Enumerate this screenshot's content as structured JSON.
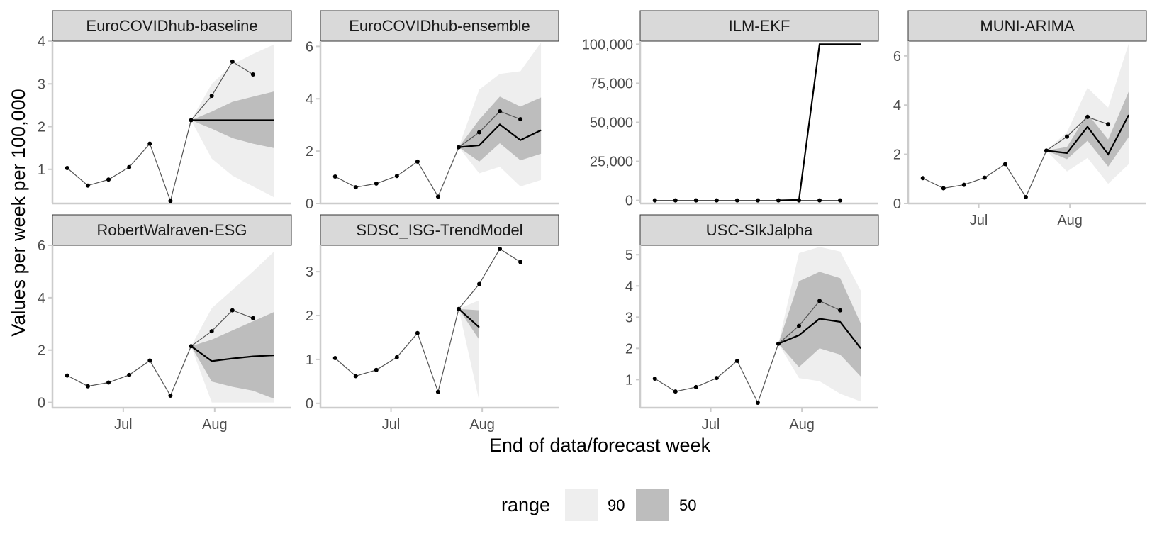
{
  "chart_data": {
    "type": "line",
    "xlabel": "End of data/forecast week",
    "ylabel": "Values per week per 100,000",
    "x_ticks": [
      "Jul",
      "Aug"
    ],
    "observed_dates": [
      "2021-06-12",
      "2021-06-19",
      "2021-06-26",
      "2021-07-03",
      "2021-07-10",
      "2021-07-17",
      "2021-07-24",
      "2021-07-31",
      "2021-08-07",
      "2021-08-14"
    ],
    "observed_values": [
      1.03,
      0.62,
      0.76,
      1.05,
      1.6,
      0.26,
      2.15,
      2.72,
      3.52,
      3.22
    ],
    "legend": {
      "title": "range",
      "items": [
        {
          "label": "90",
          "color": "#eeeeee"
        },
        {
          "label": "50",
          "color": "#bdbdbd"
        }
      ]
    },
    "panels": [
      {
        "name": "EuroCOVIDhub-baseline",
        "yticks": [
          1,
          2,
          3,
          4
        ],
        "ylim": [
          0.2,
          4.0
        ],
        "forecast_dates": [
          "2021-07-24",
          "2021-07-31",
          "2021-08-07",
          "2021-08-14",
          "2021-08-21"
        ],
        "median": [
          2.15,
          2.15,
          2.15,
          2.15,
          2.15
        ],
        "q50": [
          [
            2.15,
            2.15
          ],
          [
            1.95,
            2.35
          ],
          [
            1.73,
            2.58
          ],
          [
            1.6,
            2.7
          ],
          [
            1.5,
            2.82
          ]
        ],
        "q90": [
          [
            2.15,
            2.15
          ],
          [
            1.25,
            3.0
          ],
          [
            0.85,
            3.45
          ],
          [
            0.6,
            3.7
          ],
          [
            0.35,
            3.92
          ]
        ]
      },
      {
        "name": "EuroCOVIDhub-ensemble",
        "yticks": [
          0,
          2,
          4,
          6
        ],
        "ylim": [
          0,
          6.2
        ],
        "forecast_dates": [
          "2021-07-24",
          "2021-07-31",
          "2021-08-07",
          "2021-08-14",
          "2021-08-21"
        ],
        "median": [
          2.15,
          2.22,
          3.02,
          2.42,
          2.8
        ],
        "q50": [
          [
            2.15,
            2.15
          ],
          [
            1.6,
            3.2
          ],
          [
            2.3,
            4.08
          ],
          [
            1.65,
            3.7
          ],
          [
            1.9,
            4.05
          ]
        ],
        "q90": [
          [
            2.15,
            2.15
          ],
          [
            1.15,
            4.35
          ],
          [
            1.4,
            4.95
          ],
          [
            0.65,
            5.05
          ],
          [
            0.9,
            6.15
          ]
        ]
      },
      {
        "name": "ILM-EKF",
        "yticks": [
          0,
          25000,
          50000,
          75000,
          100000
        ],
        "ytick_labels": [
          "0",
          "25,000",
          "50,000",
          "75,000",
          "100,000"
        ],
        "ylim": [
          -2000,
          102000
        ],
        "forecast_dates": [
          "2021-07-24",
          "2021-07-31",
          "2021-08-07",
          "2021-08-14",
          "2021-08-21"
        ],
        "median": [
          2,
          300,
          100000,
          100000,
          100000
        ],
        "q50": [],
        "q90": []
      },
      {
        "name": "MUNI-ARIMA",
        "yticks": [
          0,
          2,
          4,
          6
        ],
        "ylim": [
          0,
          6.6
        ],
        "forecast_dates": [
          "2021-07-24",
          "2021-07-31",
          "2021-08-07",
          "2021-08-14",
          "2021-08-21"
        ],
        "median": [
          2.15,
          2.05,
          3.12,
          2.0,
          3.6
        ],
        "q50": [
          [
            2.15,
            2.15
          ],
          [
            1.8,
            2.3
          ],
          [
            2.55,
            3.65
          ],
          [
            1.5,
            2.6
          ],
          [
            2.7,
            4.55
          ]
        ],
        "q90": [
          [
            2.15,
            2.15
          ],
          [
            1.3,
            2.9
          ],
          [
            1.85,
            4.7
          ],
          [
            0.8,
            3.9
          ],
          [
            1.6,
            6.5
          ]
        ]
      },
      {
        "name": "RobertWalraven-ESG",
        "yticks": [
          0,
          2,
          4,
          6
        ],
        "ylim": [
          -0.2,
          6.0
        ],
        "forecast_dates": [
          "2021-07-24",
          "2021-07-31",
          "2021-08-07",
          "2021-08-14",
          "2021-08-21"
        ],
        "median": [
          2.15,
          1.58,
          1.68,
          1.76,
          1.8
        ],
        "q50": [
          [
            2.15,
            2.15
          ],
          [
            0.8,
            2.4
          ],
          [
            0.6,
            2.75
          ],
          [
            0.45,
            3.1
          ],
          [
            0.15,
            3.45
          ]
        ],
        "q90": [
          [
            2.15,
            2.15
          ],
          [
            0,
            3.6
          ],
          [
            0,
            4.3
          ],
          [
            0,
            5.0
          ],
          [
            0,
            5.75
          ]
        ]
      },
      {
        "name": "SDSC_ISG-TrendModel",
        "yticks": [
          0,
          1,
          2,
          3
        ],
        "ylim": [
          -0.1,
          3.6
        ],
        "forecast_dates": [
          "2021-07-24",
          "2021-07-31"
        ],
        "median": [
          2.15,
          1.73
        ],
        "q50": [
          [
            2.15,
            2.15
          ],
          [
            1.45,
            2.12
          ]
        ],
        "q90": [
          [
            2.15,
            2.15
          ],
          [
            0.05,
            2.35
          ]
        ]
      },
      {
        "name": "USC-SIkJalpha",
        "yticks": [
          1,
          2,
          3,
          4,
          5
        ],
        "ylim": [
          0.1,
          5.3
        ],
        "forecast_dates": [
          "2021-07-24",
          "2021-07-31",
          "2021-08-07",
          "2021-08-14",
          "2021-08-21"
        ],
        "median": [
          2.15,
          2.42,
          2.95,
          2.85,
          2.0
        ],
        "q50": [
          [
            2.15,
            2.15
          ],
          [
            1.4,
            4.15
          ],
          [
            2.0,
            4.45
          ],
          [
            1.8,
            4.25
          ],
          [
            1.1,
            2.8
          ]
        ],
        "q90": [
          [
            2.15,
            2.15
          ],
          [
            1.05,
            5.05
          ],
          [
            0.95,
            5.25
          ],
          [
            0.55,
            5.1
          ],
          [
            0.3,
            3.85
          ]
        ]
      }
    ]
  }
}
